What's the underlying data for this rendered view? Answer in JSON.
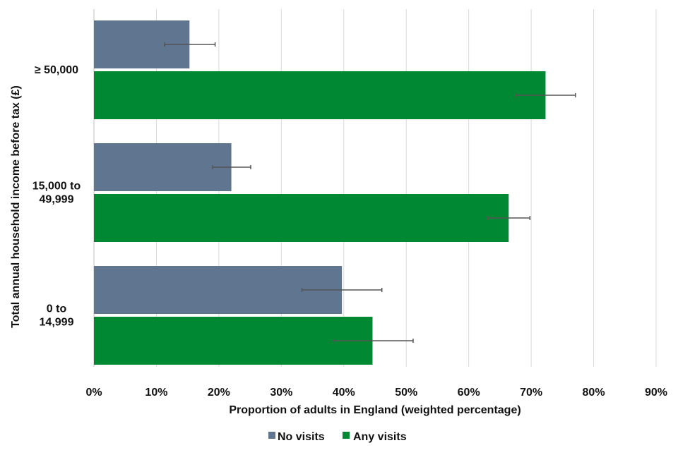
{
  "chart_data": {
    "type": "bar",
    "orientation": "horizontal",
    "title": "",
    "xlabel": "Proportion of adults in England (weighted percentage)",
    "ylabel": "Total annual household income before tax (£)",
    "xlim": [
      0,
      90
    ],
    "x_ticks": [
      0,
      10,
      20,
      30,
      40,
      50,
      60,
      70,
      80,
      90
    ],
    "x_tick_labels": [
      "0%",
      "10%",
      "20%",
      "30%",
      "40%",
      "50%",
      "60%",
      "70%",
      "80%",
      "90%"
    ],
    "grid": "vertical",
    "legend_position": "bottom",
    "categories": [
      {
        "lines": [
          "≥ 50,000"
        ]
      },
      {
        "lines": [
          "15,000 to",
          "49,999"
        ]
      },
      {
        "lines": [
          "0 to",
          "14,999"
        ]
      }
    ],
    "series": [
      {
        "name": "No visits",
        "color": "#5f7590",
        "values": [
          15.3,
          22.0,
          39.7
        ],
        "error_low": [
          11.3,
          19.0,
          33.3
        ],
        "error_high": [
          19.4,
          25.1,
          46.1
        ]
      },
      {
        "name": "Any visits",
        "color": "#008833",
        "values": [
          72.3,
          66.4,
          44.6
        ],
        "error_low": [
          67.5,
          63.0,
          38.3
        ],
        "error_high": [
          77.1,
          69.8,
          51.1
        ]
      }
    ]
  }
}
